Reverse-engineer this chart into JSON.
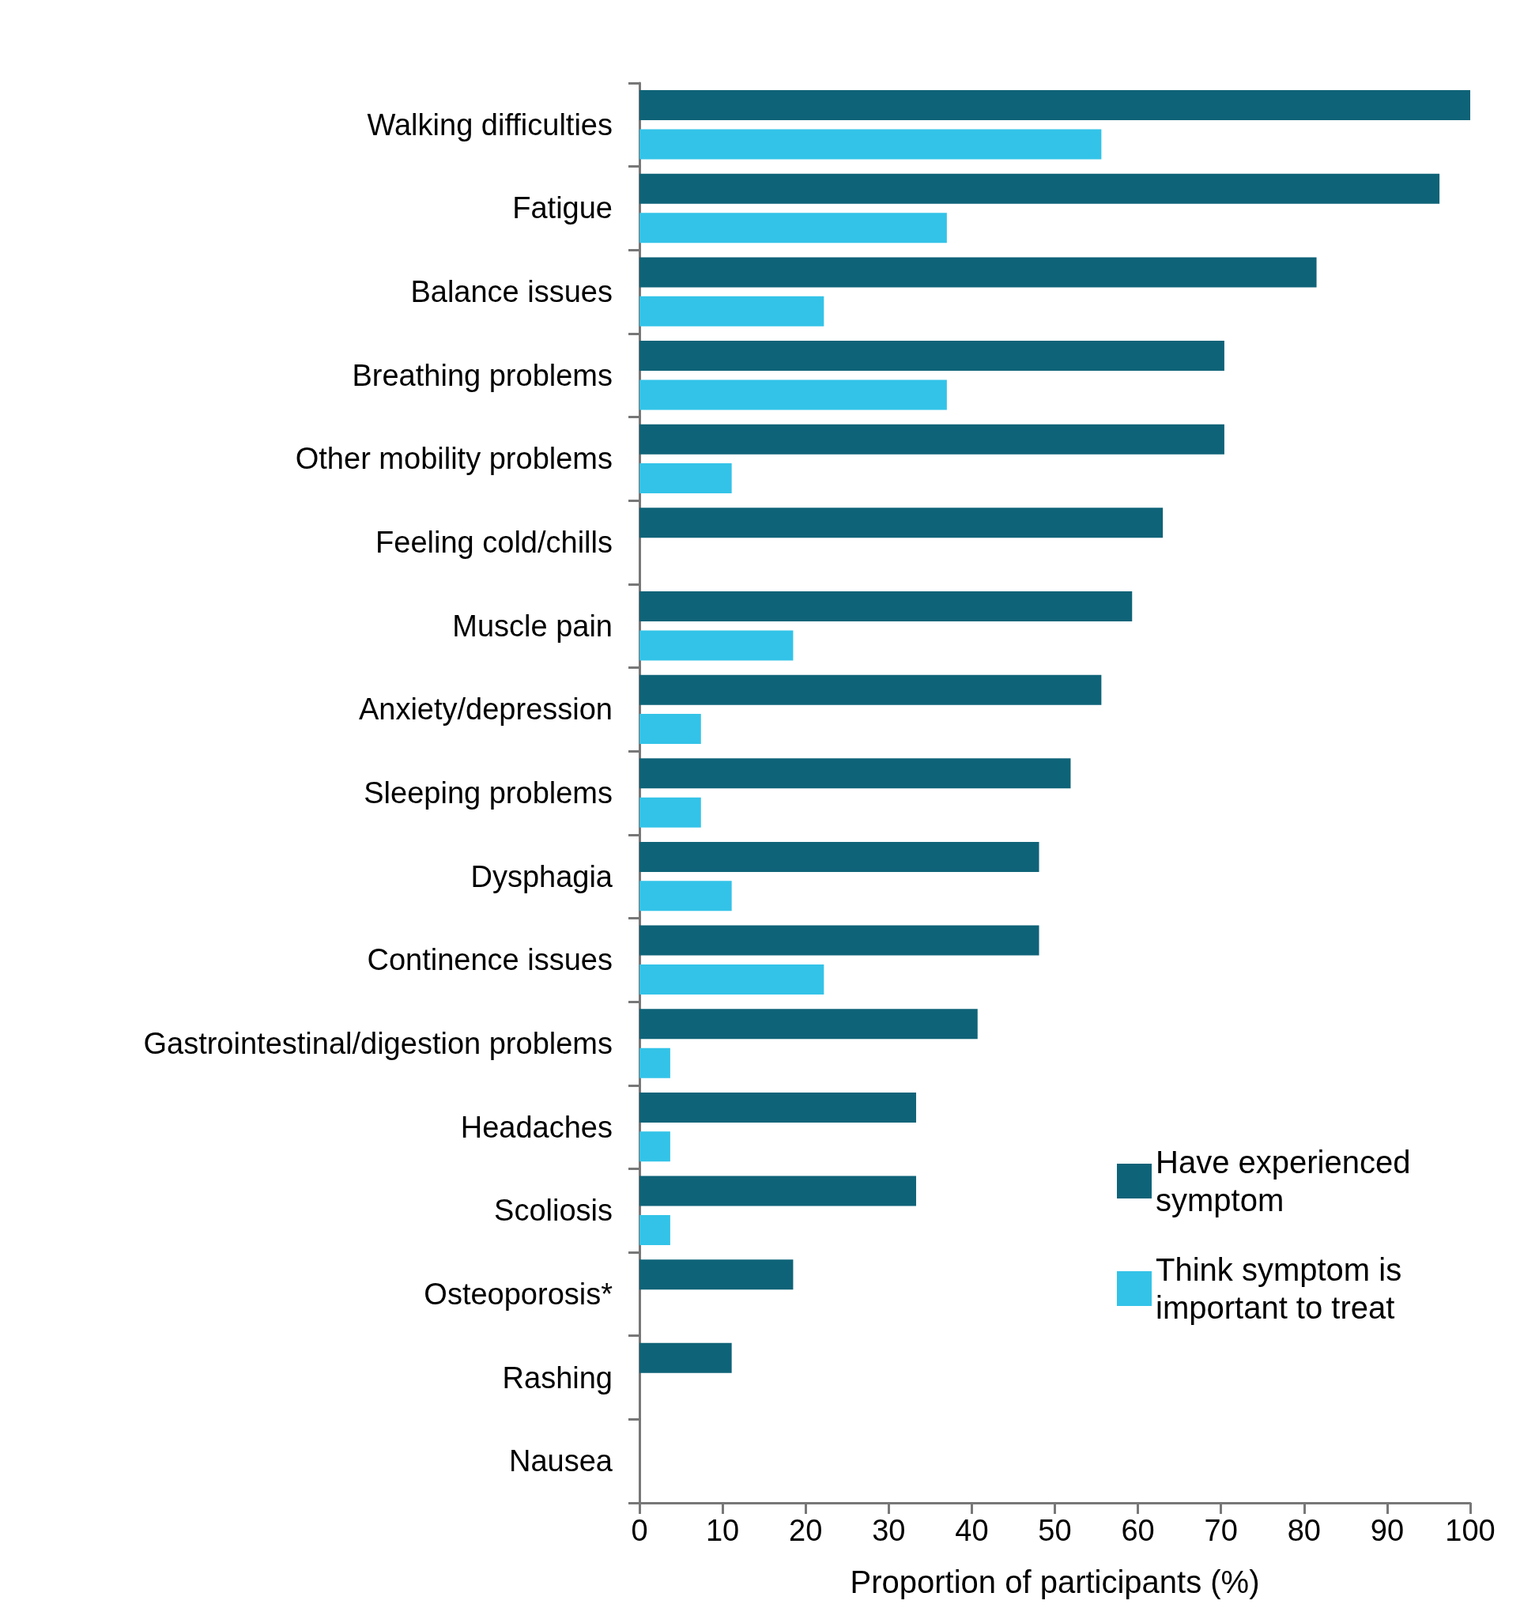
{
  "chart_data": {
    "type": "bar",
    "orientation": "horizontal",
    "xlabel": "Proportion of participants (%)",
    "categories": [
      "Walking difficulties",
      "Fatigue",
      "Balance issues",
      "Breathing problems",
      "Other mobility problems",
      "Feeling cold/chills",
      "Muscle pain",
      "Anxiety/depression",
      "Sleeping problems",
      "Dysphagia",
      "Continence issues",
      "Gastrointestinal/digestion problems",
      "Headaches",
      "Scoliosis",
      "Osteoporosis*",
      "Rashing",
      "Nausea"
    ],
    "series": [
      {
        "name": "Have experienced symptom",
        "color": "#0f6378",
        "values": [
          100,
          96.3,
          81.5,
          70.4,
          70.4,
          63,
          59.3,
          55.6,
          51.9,
          48.1,
          48.1,
          40.7,
          33.3,
          33.3,
          18.5,
          11.1,
          0
        ]
      },
      {
        "name": "Think symptom is important to treat",
        "color": "#33c3e8",
        "values": [
          55.6,
          37,
          22.2,
          37,
          11.1,
          0,
          18.5,
          7.4,
          7.4,
          11.1,
          22.2,
          3.7,
          3.7,
          3.7,
          0,
          0,
          0
        ]
      }
    ],
    "xlim": [
      0,
      100
    ],
    "xticks": [
      0,
      10,
      20,
      30,
      40,
      50,
      60,
      70,
      80,
      90,
      100
    ],
    "grid": false,
    "legend": "bottom right"
  }
}
